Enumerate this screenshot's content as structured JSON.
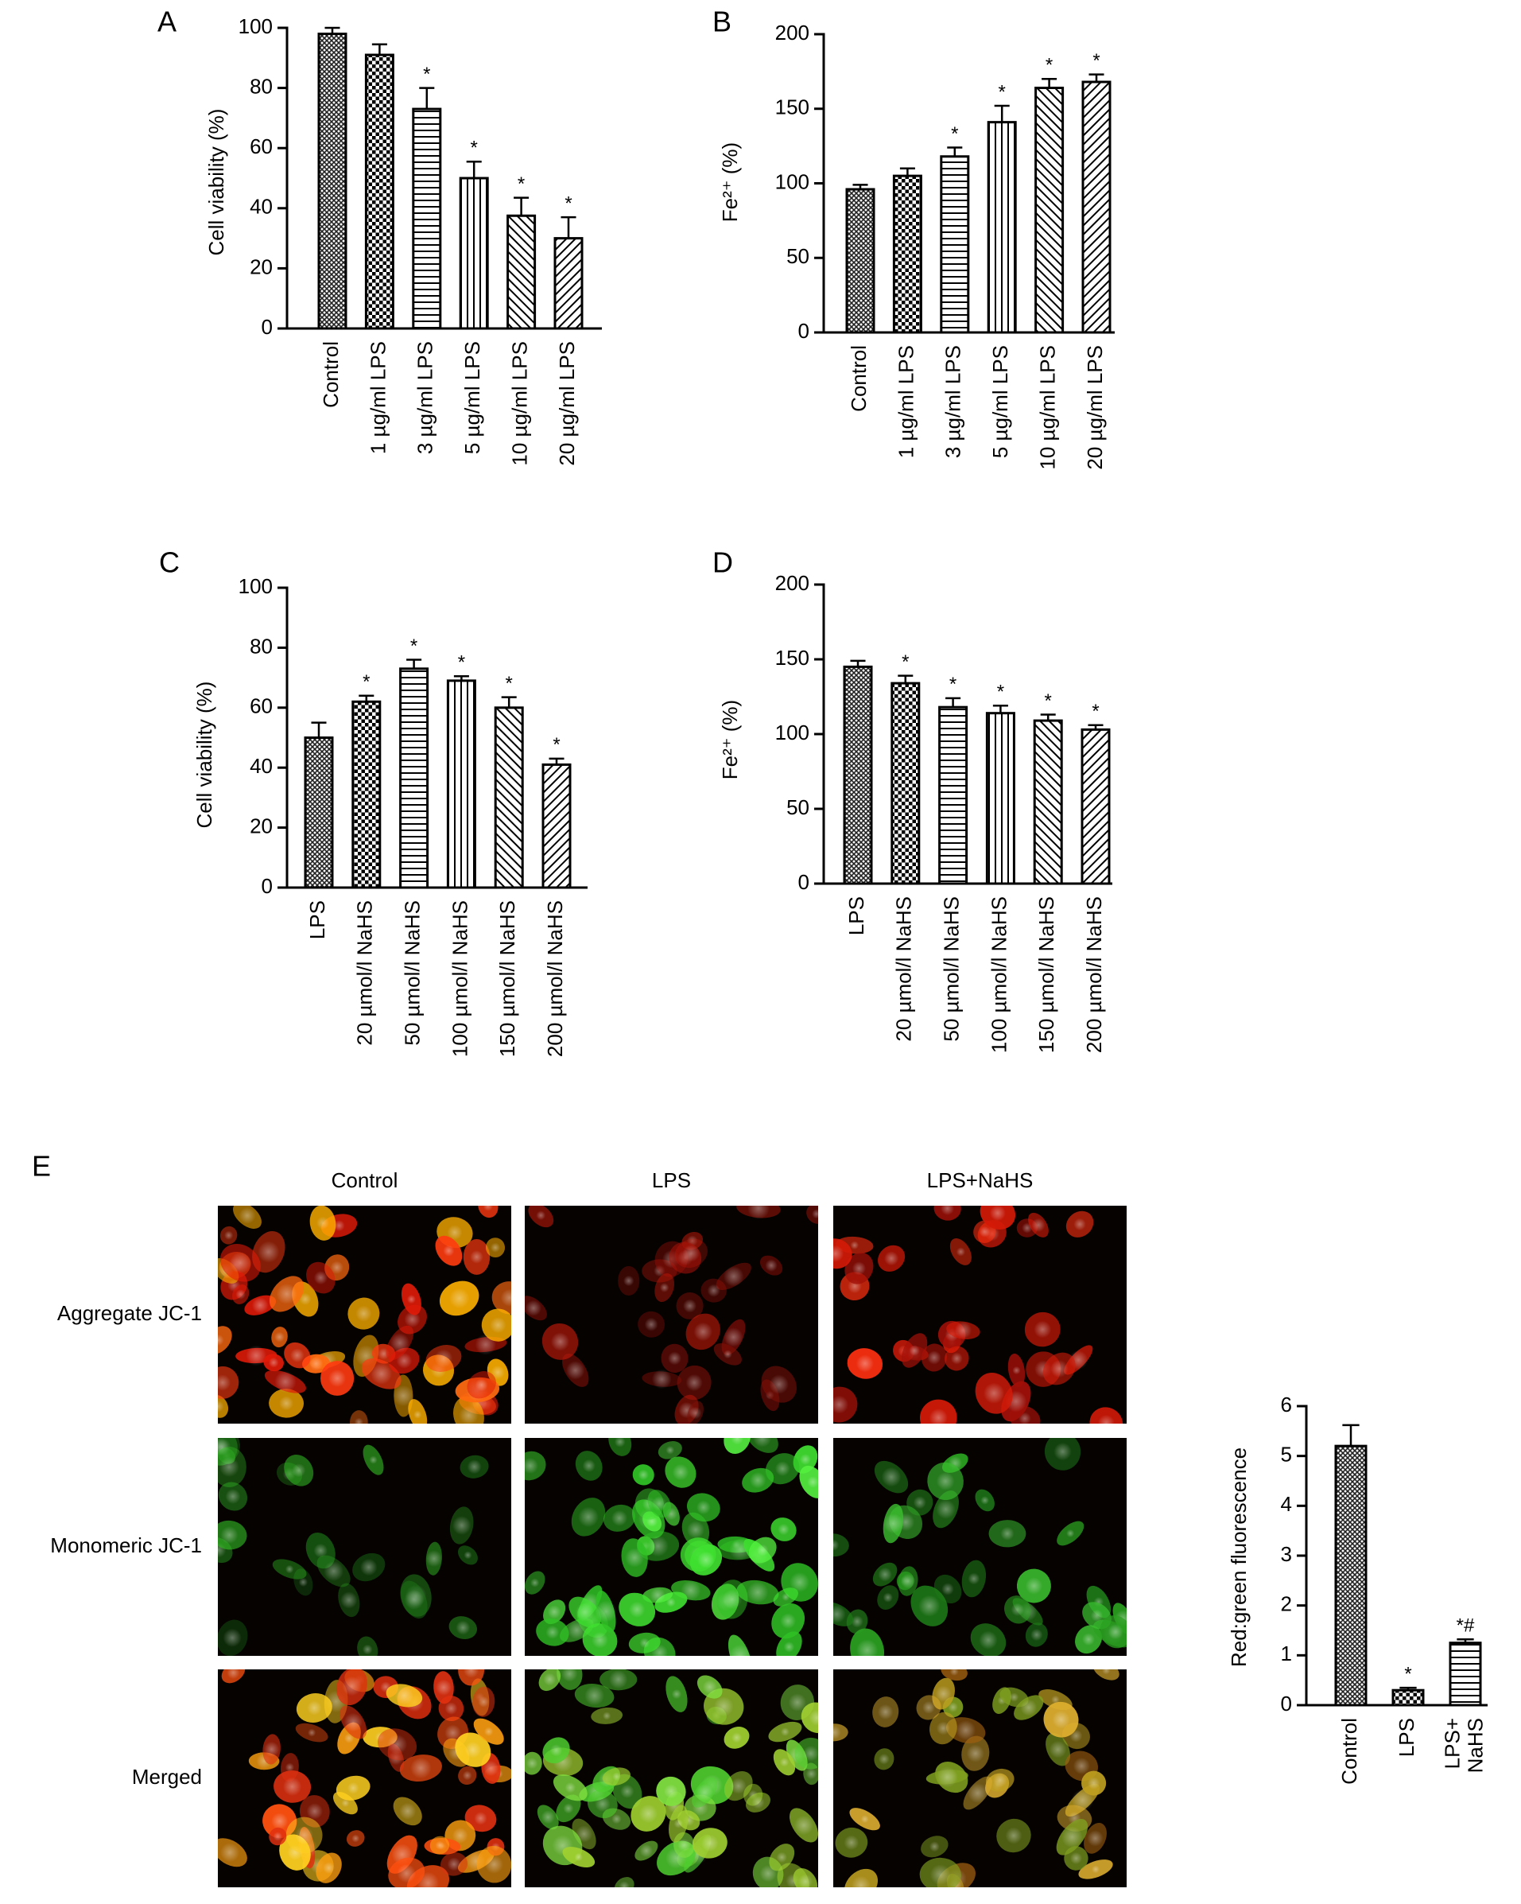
{
  "chart_data": [
    {
      "type": "bar",
      "panel": "A",
      "ylabel": "Cell viability (%)",
      "categories": [
        "Control",
        "1 µg/ml LPS",
        "3 µg/ml LPS",
        "5 µg/ml LPS",
        "10 µg/ml LPS",
        "20 µg/ml LPS"
      ],
      "values": [
        98,
        91,
        73,
        50,
        37.5,
        30
      ],
      "errors": [
        2,
        3.5,
        7,
        5.5,
        6,
        7
      ],
      "significance": [
        null,
        null,
        "*",
        "*",
        "*",
        "*"
      ],
      "patterns": [
        "crosshatch",
        "checker",
        "horizontal",
        "vertical",
        "diagonal",
        "diagonal-back"
      ],
      "ylim": [
        0,
        100
      ],
      "yticks": [
        0,
        20,
        40,
        60,
        80,
        100
      ]
    },
    {
      "type": "bar",
      "panel": "B",
      "ylabel": "Fe²⁺ (%)",
      "categories": [
        "Control",
        "1 µg/ml LPS",
        "3 µg/ml LPS",
        "5 µg/ml LPS",
        "10 µg/ml LPS",
        "20 µg/ml LPS"
      ],
      "values": [
        96,
        105,
        118,
        141,
        164,
        168
      ],
      "errors": [
        3,
        5,
        6,
        11,
        6,
        5
      ],
      "significance": [
        null,
        null,
        "*",
        "*",
        "*",
        "*"
      ],
      "patterns": [
        "crosshatch",
        "checker",
        "horizontal",
        "vertical",
        "diagonal",
        "diagonal-back"
      ],
      "ylim": [
        0,
        200
      ],
      "yticks": [
        0,
        50,
        100,
        150,
        200
      ]
    },
    {
      "type": "bar",
      "panel": "C",
      "ylabel": "Cell viability (%)",
      "categories": [
        "LPS",
        "20 µmol/l NaHS",
        "50 µmol/l NaHS",
        "100 µmol/l NaHS",
        "150 µmol/l NaHS",
        "200 µmol/l NaHS"
      ],
      "values": [
        50,
        62,
        73,
        69,
        60,
        41
      ],
      "errors": [
        5,
        2,
        3,
        1.5,
        3.5,
        2
      ],
      "significance": [
        null,
        "*",
        "*",
        "*",
        "*",
        "*"
      ],
      "patterns": [
        "crosshatch",
        "checker",
        "horizontal",
        "vertical",
        "diagonal",
        "diagonal-back"
      ],
      "ylim": [
        0,
        100
      ],
      "yticks": [
        0,
        20,
        40,
        60,
        80,
        100
      ]
    },
    {
      "type": "bar",
      "panel": "D",
      "ylabel": "Fe²⁺ (%)",
      "categories": [
        "LPS",
        "20 µmol/l NaHS",
        "50 µmol/l NaHS",
        "100 µmol/l NaHS",
        "150 µmol/l NaHS",
        "200 µmol/l NaHS"
      ],
      "values": [
        145,
        134,
        118,
        114,
        109,
        103
      ],
      "errors": [
        4,
        5,
        6,
        5,
        4,
        3
      ],
      "significance": [
        null,
        "*",
        "*",
        "*",
        "*",
        "*"
      ],
      "patterns": [
        "crosshatch",
        "checker",
        "horizontal",
        "vertical",
        "diagonal",
        "diagonal-back"
      ],
      "ylim": [
        0,
        200
      ],
      "yticks": [
        0,
        50,
        100,
        150,
        200
      ]
    },
    {
      "type": "bar",
      "ylabel": "Red:green fluorescence",
      "categories": [
        "Control",
        "LPS",
        "LPS+\nNaHS"
      ],
      "values": [
        5.2,
        0.3,
        1.25
      ],
      "errors": [
        0.42,
        0.05,
        0.07
      ],
      "significance": [
        null,
        "*",
        "*#"
      ],
      "patterns": [
        "crosshatch",
        "checker",
        "horizontal"
      ],
      "ylim": [
        0,
        6
      ],
      "yticks": [
        0,
        1,
        2,
        3,
        4,
        5,
        6
      ]
    }
  ],
  "micrographs": {
    "panel": "E",
    "columns": [
      "Control",
      "LPS",
      "LPS+NaHS"
    ],
    "rows": [
      "Aggregate JC-1",
      "Monomeric JC-1",
      "Merged"
    ]
  }
}
